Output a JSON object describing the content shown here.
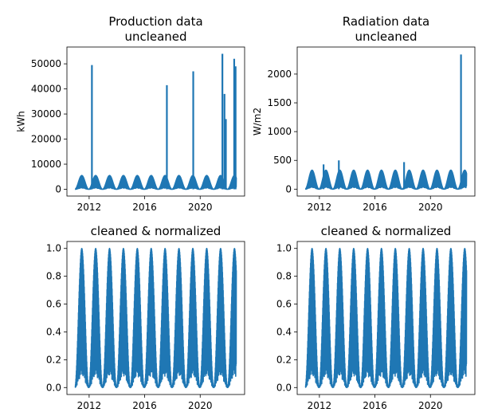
{
  "chart_data": [
    {
      "type": "line",
      "title_lines": [
        "Production data",
        "uncleaned"
      ],
      "xlabel": "",
      "ylabel": "kWh",
      "color": "#1f77b4",
      "xlim": [
        2010.4,
        2023.2
      ],
      "ylim": [
        -2700,
        56700
      ],
      "xticks": [
        2012,
        2016,
        2020
      ],
      "xtick_labels": [
        "2012",
        "2016",
        "2020"
      ],
      "yticks": [
        0,
        10000,
        20000,
        30000,
        40000,
        50000
      ],
      "ytick_labels": [
        "0",
        "10000",
        "20000",
        "30000",
        "40000",
        "50000"
      ],
      "seasonal": {
        "start": 2011.0,
        "end": 2022.6,
        "low": 0,
        "high": 5500
      },
      "spikes": [
        {
          "x": 2012.2,
          "y": 49500
        },
        {
          "x": 2017.6,
          "y": 41500
        },
        {
          "x": 2019.5,
          "y": 47000
        },
        {
          "x": 2021.6,
          "y": 54000
        },
        {
          "x": 2021.75,
          "y": 38000
        },
        {
          "x": 2021.85,
          "y": 28000
        },
        {
          "x": 2022.45,
          "y": 52000
        },
        {
          "x": 2022.55,
          "y": 49000
        }
      ]
    },
    {
      "type": "line",
      "title_lines": [
        "Radiation data",
        "uncleaned"
      ],
      "xlabel": "",
      "ylabel": "W/m2",
      "color": "#1f77b4",
      "xlim": [
        2010.4,
        2023.2
      ],
      "ylim": [
        -120,
        2470
      ],
      "xticks": [
        2012,
        2016,
        2020
      ],
      "xtick_labels": [
        "2012",
        "2016",
        "2020"
      ],
      "yticks": [
        0,
        500,
        1000,
        1500,
        2000
      ],
      "ytick_labels": [
        "0",
        "500",
        "1000",
        "1500",
        "2000"
      ],
      "seasonal": {
        "start": 2011.0,
        "end": 2022.6,
        "low": 0,
        "high": 330
      },
      "spikes": [
        {
          "x": 2012.3,
          "y": 430
        },
        {
          "x": 2013.4,
          "y": 500
        },
        {
          "x": 2018.1,
          "y": 470
        },
        {
          "x": 2022.2,
          "y": 2340
        }
      ]
    },
    {
      "type": "line",
      "title_lines": [
        "cleaned & normalized"
      ],
      "xlabel": "",
      "ylabel": "",
      "color": "#1f77b4",
      "xlim": [
        2010.4,
        2023.2
      ],
      "ylim": [
        -0.05,
        1.05
      ],
      "xticks": [
        2012,
        2016,
        2020
      ],
      "xtick_labels": [
        "2012",
        "2016",
        "2020"
      ],
      "yticks": [
        0.0,
        0.2,
        0.4,
        0.6,
        0.8,
        1.0
      ],
      "ytick_labels": [
        "0.0",
        "0.2",
        "0.4",
        "0.6",
        "0.8",
        "1.0"
      ],
      "seasonal": {
        "start": 2011.0,
        "end": 2022.6,
        "low": 0.0,
        "high": 1.0
      },
      "spikes": []
    },
    {
      "type": "line",
      "title_lines": [
        "cleaned & normalized"
      ],
      "xlabel": "",
      "ylabel": "",
      "color": "#1f77b4",
      "xlim": [
        2010.4,
        2023.2
      ],
      "ylim": [
        -0.05,
        1.05
      ],
      "xticks": [
        2012,
        2016,
        2020
      ],
      "xtick_labels": [
        "2012",
        "2016",
        "2020"
      ],
      "yticks": [
        0.0,
        0.2,
        0.4,
        0.6,
        0.8,
        1.0
      ],
      "ytick_labels": [
        "0.0",
        "0.2",
        "0.4",
        "0.6",
        "0.8",
        "1.0"
      ],
      "seasonal": {
        "start": 2011.0,
        "end": 2022.6,
        "low": 0.0,
        "high": 1.0
      },
      "spikes": []
    }
  ]
}
